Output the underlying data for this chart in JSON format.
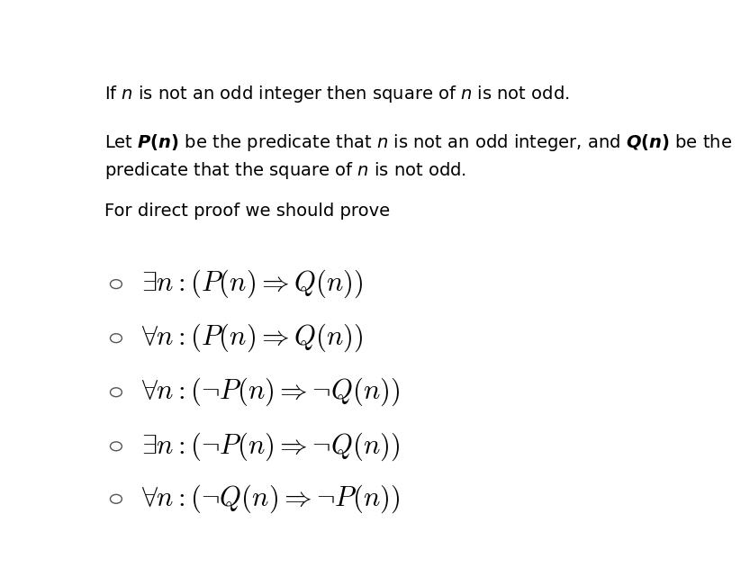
{
  "background_color": "#ffffff",
  "fig_width": 8.33,
  "fig_height": 6.41,
  "dpi": 100,
  "text_color": "#000000",
  "circle_color": "#555555",
  "header_fontsize": 14,
  "option_fontsize": 22,
  "options": [
    "$\\exists n : (P(n) \\Rightarrow Q(n))$",
    "$\\forall n : (P(n) \\Rightarrow Q(n))$",
    "$\\forall n : (\\neg P(n) \\Rightarrow \\neg Q(n))$",
    "$\\exists n : (\\neg P(n) \\Rightarrow \\neg Q(n))$",
    "$\\forall n : (\\neg Q(n) \\Rightarrow \\neg P(n))$"
  ]
}
